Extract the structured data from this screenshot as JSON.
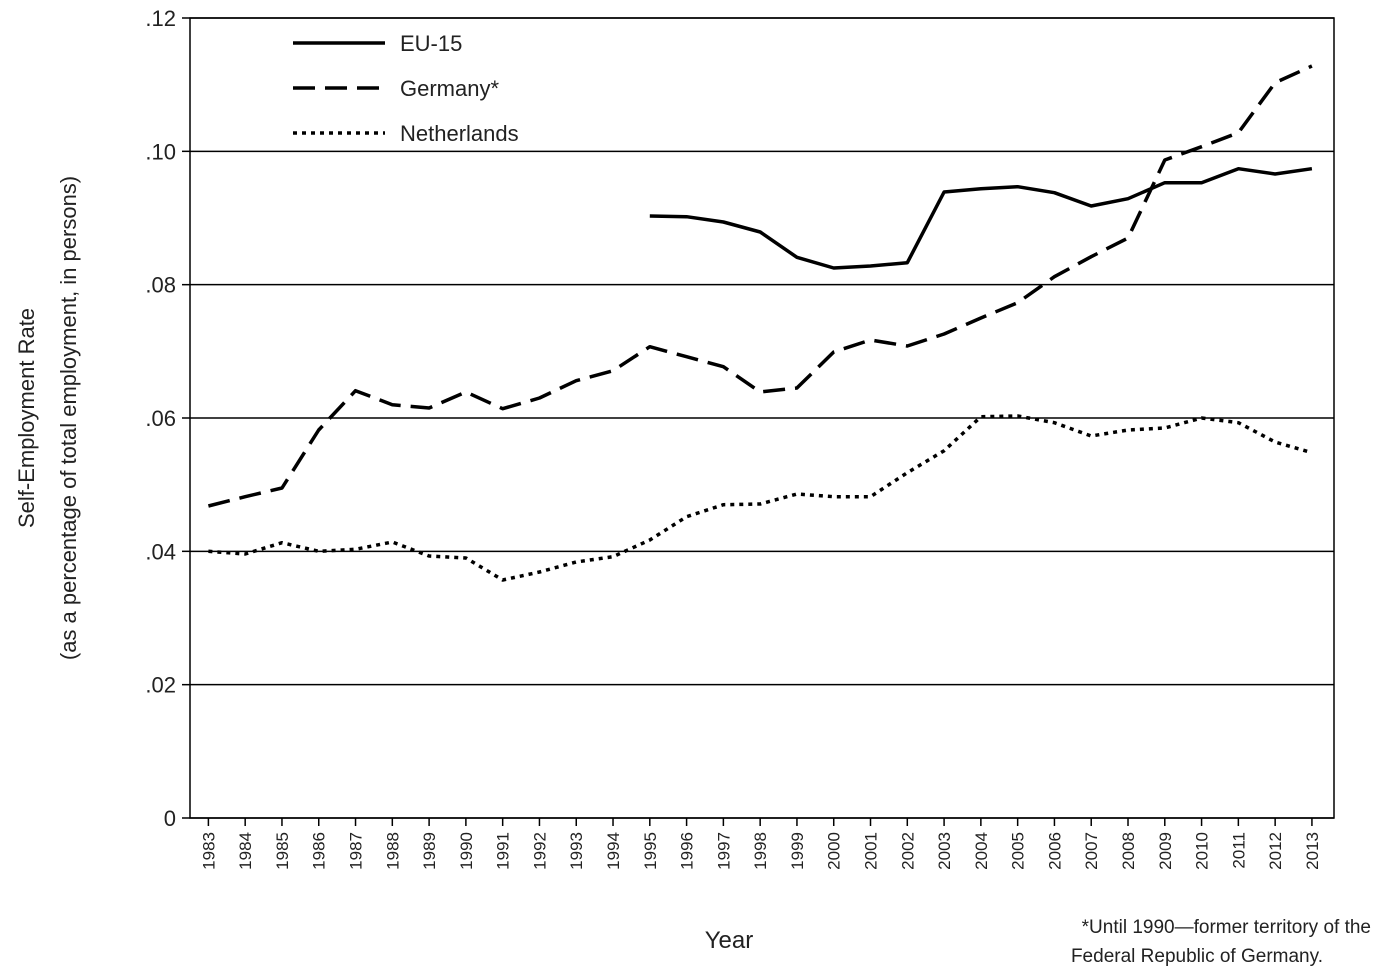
{
  "chart_data": {
    "type": "line",
    "ylabel": [
      "Self-Employment Rate",
      "(as a percentage of total employment, in persons)"
    ],
    "xlabel": "Year",
    "note": [
      "*Until 1990—former territory of the",
      "Federal Republic of Germany."
    ],
    "x": [
      1983,
      1984,
      1985,
      1986,
      1987,
      1988,
      1989,
      1990,
      1991,
      1992,
      1993,
      1994,
      1995,
      1996,
      1997,
      1998,
      1999,
      2000,
      2001,
      2002,
      2003,
      2004,
      2005,
      2006,
      2007,
      2008,
      2009,
      2010,
      2011,
      2012,
      2013
    ],
    "series": [
      {
        "name": "EU-15",
        "color": "#000000",
        "dash": "solid",
        "values": [
          null,
          null,
          null,
          null,
          null,
          null,
          null,
          null,
          null,
          null,
          null,
          null,
          0.0903,
          0.0902,
          0.0894,
          0.0879,
          0.0841,
          0.0825,
          0.0828,
          0.0833,
          0.0939,
          0.0944,
          0.0947,
          0.0938,
          0.0918,
          0.0929,
          0.0953,
          0.0953,
          0.0974,
          0.0966,
          0.0974
        ]
      },
      {
        "name": "Germany*",
        "color": "#000000",
        "dash": "dashed",
        "values": [
          0.0468,
          0.0482,
          0.0495,
          0.0582,
          0.0641,
          0.062,
          0.0615,
          0.0639,
          0.0614,
          0.063,
          0.0656,
          0.0671,
          0.0707,
          0.0692,
          0.0677,
          0.0639,
          0.0645,
          0.0699,
          0.0717,
          0.0708,
          0.0726,
          0.075,
          0.0773,
          0.0812,
          0.0842,
          0.087,
          0.0987,
          0.1007,
          0.1028,
          0.1103,
          0.1128
        ]
      },
      {
        "name": "Netherlands",
        "color": "#000000",
        "dash": "dotted",
        "values": [
          0.04,
          0.0396,
          0.0413,
          0.04,
          0.0403,
          0.0414,
          0.0393,
          0.039,
          0.0357,
          0.0369,
          0.0384,
          0.0392,
          0.0417,
          0.0452,
          0.047,
          0.0471,
          0.0486,
          0.0482,
          0.0482,
          0.0518,
          0.0551,
          0.0602,
          0.0603,
          0.0593,
          0.0573,
          0.0582,
          0.0585,
          0.06,
          0.0593,
          0.0564,
          0.0548
        ]
      }
    ],
    "xlim": [
      1982.5,
      2013.6
    ],
    "xticks": [
      1983,
      1984,
      1985,
      1986,
      1987,
      1988,
      1989,
      1990,
      1991,
      1992,
      1993,
      1994,
      1995,
      1996,
      1997,
      1998,
      1999,
      2000,
      2001,
      2002,
      2003,
      2004,
      2005,
      2006,
      2007,
      2008,
      2009,
      2010,
      2011,
      2012,
      2013
    ],
    "ylim": [
      0,
      0.12
    ],
    "yticks": [
      0,
      {
        "value": 0.02,
        "label": ".02"
      },
      {
        "value": 0.04,
        "label": ".04"
      },
      {
        "value": 0.06,
        "label": ".06"
      },
      {
        "value": 0.08,
        "label": ".08"
      },
      {
        "value": 0.1,
        "label": ".10"
      },
      {
        "value": 0.12,
        "label": ".12"
      }
    ],
    "grid": true,
    "legend": "top-left"
  }
}
